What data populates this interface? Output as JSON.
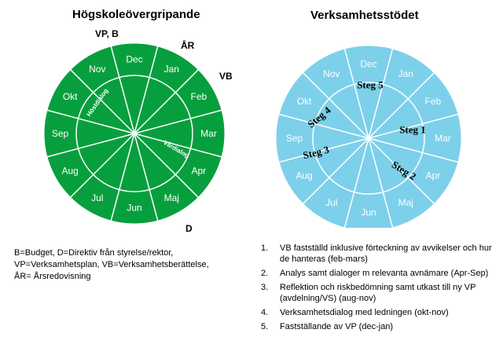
{
  "left_diagram": {
    "title": "Högskoleövergripande",
    "months": [
      "Jan",
      "Feb",
      "Mar",
      "Apr",
      "Maj",
      "Jun",
      "Jul",
      "Aug",
      "Sep",
      "Okt",
      "Nov",
      "Dec"
    ],
    "inner_labels": {
      "autumn": "Höstdialog",
      "spring": "Vårdialog"
    },
    "side_labels": {
      "vp_b": "VP, B",
      "ar": "ÅR",
      "vb": "VB",
      "d": "D"
    },
    "fill_color": "#079f3d",
    "line_color": "#ffffff"
  },
  "right_diagram": {
    "title": "Verksamhetsstödet",
    "months": [
      "Jan",
      "Feb",
      "Mar",
      "Apr",
      "Maj",
      "Jun",
      "Jul",
      "Aug",
      "Sep",
      "Okt",
      "Nov",
      "Dec"
    ],
    "steps": [
      "Steg 1",
      "Steg 2",
      "Steg 3",
      "Steg 4",
      "Steg 5"
    ],
    "fill_color": "#7dd0ea",
    "line_color": "#ffffff"
  },
  "legend_left": [
    "B=Budget,  D=Direktiv från styrelse/rektor,",
    "VP=Verksamhetsplan, VB=Verksamhetsberättelse,",
    "ÅR= Årsredovisning"
  ],
  "steps_list": [
    {
      "num": "1.",
      "text": "VB fastställd inklusive förteckning av avvikelser och hur de hanteras (feb-mars)"
    },
    {
      "num": "2.",
      "text": "Analys samt dialoger m relevanta avnämare (Apr-Sep)"
    },
    {
      "num": "3.",
      "text": "Reflektion och riskbedömning samt utkast till ny VP (avdelning/VS) (aug-nov)"
    },
    {
      "num": "4.",
      "text": "Verksamhetsdialog med ledningen (okt-nov)"
    },
    {
      "num": "5.",
      "text": "Fastställande av VP (dec-jan)"
    }
  ]
}
